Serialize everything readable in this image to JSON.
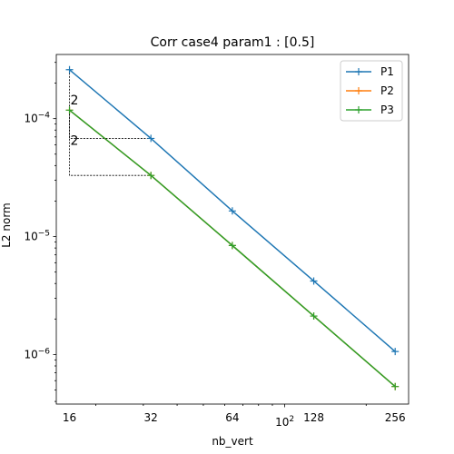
{
  "chart_data": {
    "type": "line",
    "title": "Corr case4 param1 : [0.5]",
    "xlabel": "nb_vert",
    "ylabel": "L2 norm",
    "xscale": "log",
    "yscale": "log",
    "x": [
      16,
      32,
      64,
      128,
      256
    ],
    "x_tick_labels": [
      "16",
      "32",
      "64",
      "128",
      "256"
    ],
    "x_major_tick_label": "10",
    "x_major_tick_exp": "2",
    "y_tick_labels": [
      {
        "base": "10",
        "exp": "−4"
      },
      {
        "base": "10",
        "exp": "−5"
      },
      {
        "base": "10",
        "exp": "−6"
      }
    ],
    "xlim": [
      14.3,
      287
    ],
    "ylim": [
      3.8e-07,
      0.00035
    ],
    "grid": false,
    "legend_position": "top-right",
    "series": [
      {
        "name": "P1",
        "color": "#1f77b4",
        "marker": "+",
        "values": [
          0.00026,
          6.8e-05,
          1.65e-05,
          4.2e-06,
          1.06e-06
        ]
      },
      {
        "name": "P2",
        "color": "#ff7f0e",
        "marker": "+",
        "values": [
          0.000118,
          3.3e-05,
          8.4e-06,
          2.12e-06,
          5.35e-07
        ]
      },
      {
        "name": "P3",
        "color": "#2ca02c",
        "marker": "+",
        "values": [
          0.000118,
          3.3e-05,
          8.4e-06,
          2.12e-06,
          5.35e-07
        ]
      }
    ],
    "slope_triangles": [
      {
        "label": "2",
        "x": [
          16,
          32
        ],
        "y": [
          0.00026,
          6.8e-05
        ]
      },
      {
        "label": "2",
        "x": [
          16,
          32
        ],
        "y": [
          0.000118,
          3.3e-05
        ]
      }
    ]
  }
}
